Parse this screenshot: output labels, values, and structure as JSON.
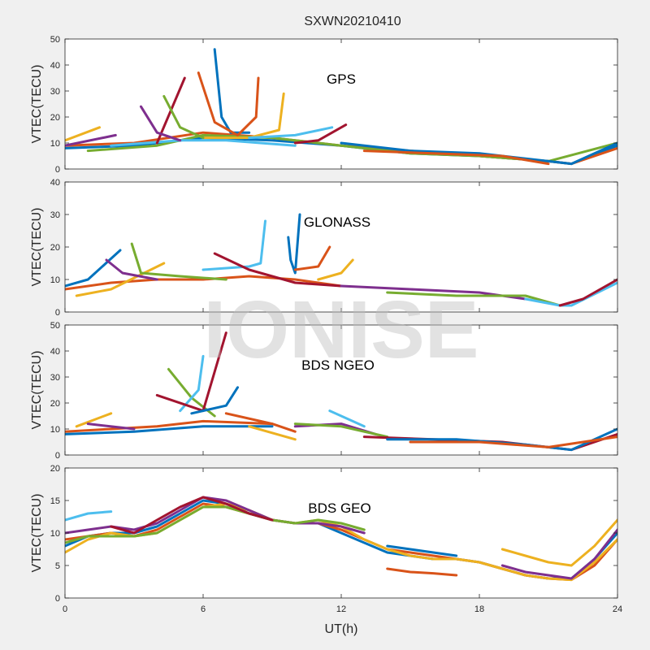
{
  "figure": {
    "title": "SXWN20210410",
    "watermark": "IONISE"
  },
  "colors": [
    "#0072BD",
    "#D95319",
    "#EDB120",
    "#7E2F8E",
    "#77AC30",
    "#4DBEEE",
    "#A2142F"
  ],
  "chart_data": [
    {
      "type": "line",
      "panel_label": "GPS",
      "ylabel": "VTEC(TECU)",
      "xlabel": "",
      "xlim": [
        0,
        24
      ],
      "ylim": [
        0,
        50
      ],
      "xticks": [
        0,
        6,
        12,
        18,
        24
      ],
      "yticks": [
        0,
        10,
        20,
        30,
        40,
        50
      ],
      "grid": false,
      "series": [
        {
          "x": [
            0,
            3,
            6,
            9,
            12,
            15,
            18,
            21,
            22,
            24
          ],
          "y": [
            8,
            9,
            12,
            11,
            9,
            6,
            5,
            3,
            2,
            9
          ]
        },
        {
          "x": [
            0,
            3,
            6,
            9,
            12,
            15,
            18,
            21,
            22,
            24
          ],
          "y": [
            9,
            10,
            14,
            12,
            9,
            7,
            5,
            3,
            2,
            8
          ]
        },
        {
          "x": [
            0,
            1.5
          ],
          "y": [
            11,
            16
          ]
        },
        {
          "x": [
            0,
            2.2
          ],
          "y": [
            9,
            13
          ]
        },
        {
          "x": [
            1,
            4,
            6,
            9,
            12,
            15,
            18,
            21,
            24
          ],
          "y": [
            7,
            9,
            13,
            12,
            9,
            6,
            5,
            3,
            10
          ]
        },
        {
          "x": [
            2,
            5,
            7,
            10
          ],
          "y": [
            9,
            11,
            11,
            9
          ]
        },
        {
          "x": [
            4,
            5.2
          ],
          "y": [
            10,
            35
          ]
        },
        {
          "x": [
            6.5,
            6.8,
            7.2,
            8
          ],
          "y": [
            46,
            20,
            14,
            14
          ]
        },
        {
          "x": [
            5.8,
            6.5,
            7.5,
            8.3,
            8.4
          ],
          "y": [
            37,
            18,
            13,
            20,
            35
          ]
        },
        {
          "x": [
            6,
            8,
            9.3,
            9.5
          ],
          "y": [
            12,
            12,
            15,
            29
          ]
        },
        {
          "x": [
            3.3,
            4,
            5
          ],
          "y": [
            24,
            14,
            11
          ]
        },
        {
          "x": [
            4.3,
            5,
            6
          ],
          "y": [
            28,
            16,
            12
          ]
        },
        {
          "x": [
            8,
            10,
            11.6
          ],
          "y": [
            12,
            13,
            16
          ]
        },
        {
          "x": [
            10,
            11,
            12.2
          ],
          "y": [
            10,
            11,
            17
          ]
        },
        {
          "x": [
            12,
            15,
            18,
            21,
            22,
            24
          ],
          "y": [
            10,
            7,
            6,
            3,
            2,
            10
          ]
        },
        {
          "x": [
            13,
            16,
            19,
            21
          ],
          "y": [
            7,
            6,
            5,
            2
          ]
        }
      ]
    },
    {
      "type": "line",
      "panel_label": "GLONASS",
      "ylabel": "VTEC(TECU)",
      "xlabel": "",
      "xlim": [
        0,
        24
      ],
      "ylim": [
        0,
        40
      ],
      "xticks": [
        0,
        6,
        12,
        18,
        24
      ],
      "yticks": [
        0,
        10,
        20,
        30,
        40
      ],
      "grid": false,
      "series": [
        {
          "x": [
            0,
            1,
            2.4
          ],
          "y": [
            8,
            10,
            19
          ]
        },
        {
          "x": [
            0,
            2,
            4,
            6,
            8,
            10,
            12
          ],
          "y": [
            7,
            9,
            10,
            10,
            11,
            10,
            8
          ]
        },
        {
          "x": [
            0.5,
            2,
            4.3
          ],
          "y": [
            5,
            7,
            15
          ]
        },
        {
          "x": [
            1.8,
            2.5,
            4
          ],
          "y": [
            16,
            12,
            10
          ]
        },
        {
          "x": [
            2.9,
            3.3,
            5,
            7
          ],
          "y": [
            21,
            12,
            11,
            10
          ]
        },
        {
          "x": [
            6,
            8,
            8.5,
            8.7
          ],
          "y": [
            13,
            14,
            15,
            28
          ]
        },
        {
          "x": [
            6.5,
            8,
            10,
            12
          ],
          "y": [
            18,
            13,
            9,
            8
          ]
        },
        {
          "x": [
            9.7,
            9.8,
            10,
            10.2
          ],
          "y": [
            23,
            16,
            12,
            30
          ]
        },
        {
          "x": [
            10,
            11,
            11.5
          ],
          "y": [
            13,
            14,
            20
          ]
        },
        {
          "x": [
            11,
            12,
            12.5
          ],
          "y": [
            10,
            12,
            16
          ]
        },
        {
          "x": [
            12,
            15,
            18,
            20
          ],
          "y": [
            8,
            7,
            6,
            4
          ]
        },
        {
          "x": [
            14,
            17,
            20,
            21.5
          ],
          "y": [
            6,
            5,
            5,
            2
          ]
        },
        {
          "x": [
            20,
            21.5,
            22,
            24
          ],
          "y": [
            4,
            2,
            2,
            9
          ]
        },
        {
          "x": [
            21.5,
            22.5,
            24
          ],
          "y": [
            2,
            4,
            10
          ]
        }
      ]
    },
    {
      "type": "line",
      "panel_label": "BDS NGEO",
      "ylabel": "VTEC(TECU)",
      "xlabel": "",
      "xlim": [
        0,
        24
      ],
      "ylim": [
        0,
        50
      ],
      "xticks": [
        0,
        6,
        12,
        18,
        24
      ],
      "yticks": [
        0,
        10,
        20,
        30,
        40,
        50
      ],
      "grid": false,
      "series": [
        {
          "x": [
            0,
            3,
            6,
            9
          ],
          "y": [
            8,
            9,
            11,
            11
          ]
        },
        {
          "x": [
            0,
            2,
            4,
            6,
            9
          ],
          "y": [
            9,
            10,
            11,
            13,
            12
          ]
        },
        {
          "x": [
            0.5,
            2
          ],
          "y": [
            11,
            16
          ]
        },
        {
          "x": [
            1,
            3
          ],
          "y": [
            12,
            10
          ]
        },
        {
          "x": [
            4.5,
            5.5,
            6.5
          ],
          "y": [
            33,
            22,
            15
          ]
        },
        {
          "x": [
            5,
            5.8,
            6
          ],
          "y": [
            17,
            25,
            38
          ]
        },
        {
          "x": [
            4,
            6,
            7
          ],
          "y": [
            23,
            17,
            47
          ]
        },
        {
          "x": [
            5.5,
            7,
            7.5
          ],
          "y": [
            16,
            19,
            26
          ]
        },
        {
          "x": [
            7,
            9,
            10
          ],
          "y": [
            16,
            12,
            9
          ]
        },
        {
          "x": [
            8,
            10
          ],
          "y": [
            11,
            6
          ]
        },
        {
          "x": [
            10,
            12,
            13.5
          ],
          "y": [
            11,
            12,
            8
          ]
        },
        {
          "x": [
            10,
            12,
            14
          ],
          "y": [
            12,
            11,
            7
          ]
        },
        {
          "x": [
            11.5,
            13
          ],
          "y": [
            17,
            11
          ]
        },
        {
          "x": [
            13,
            16,
            19,
            21,
            22,
            24
          ],
          "y": [
            7,
            6,
            5,
            3,
            2,
            8
          ]
        },
        {
          "x": [
            14,
            17,
            20,
            22,
            24
          ],
          "y": [
            6,
            6,
            4,
            2,
            10
          ]
        },
        {
          "x": [
            15,
            18,
            21,
            24
          ],
          "y": [
            5,
            5,
            3,
            7
          ]
        }
      ]
    },
    {
      "type": "line",
      "panel_label": "BDS GEO",
      "ylabel": "VTEC(TECU)",
      "xlabel": "UT(h)",
      "xlim": [
        0,
        24
      ],
      "ylim": [
        0,
        20
      ],
      "xticks": [
        0,
        6,
        12,
        18,
        24
      ],
      "yticks": [
        0,
        5,
        10,
        15,
        20
      ],
      "grid": false,
      "series": [
        {
          "x": [
            0,
            1,
            2,
            3,
            4,
            5,
            6,
            7,
            8,
            9,
            10,
            11,
            12,
            13,
            14,
            15,
            16,
            17,
            18,
            19,
            20,
            21,
            22,
            23,
            24
          ],
          "y": [
            8,
            9.5,
            10,
            10,
            11,
            13,
            15,
            14.5,
            13,
            12,
            11.5,
            11.5,
            10,
            8.5,
            7,
            6.5,
            6,
            6,
            5.5,
            4.5,
            3.5,
            3,
            3,
            6,
            10
          ]
        },
        {
          "x": [
            0,
            1,
            2,
            3,
            4,
            5,
            6,
            7,
            8,
            9,
            10,
            11,
            12,
            13,
            14,
            15,
            16,
            17,
            18,
            19,
            20,
            21,
            22,
            23,
            24
          ],
          "y": [
            9,
            9.5,
            10,
            9.5,
            10.5,
            12.5,
            14.5,
            14,
            13,
            12,
            11.5,
            11.5,
            10.5,
            9,
            7.5,
            7,
            6.5,
            6,
            5.5,
            4.5,
            3.5,
            3,
            2.8,
            5,
            9
          ]
        },
        {
          "x": [
            0,
            1,
            2,
            3,
            4,
            5,
            6,
            7,
            8,
            9,
            10,
            11,
            12,
            13,
            14,
            15,
            16,
            17,
            18,
            19,
            20,
            21,
            22,
            23,
            24
          ],
          "y": [
            7,
            9,
            10,
            9.5,
            10,
            12,
            14,
            14.5,
            13.5,
            12,
            11.5,
            12,
            11,
            9,
            7.5,
            6.5,
            6,
            6,
            5.5,
            4.5,
            3.5,
            3,
            2.8,
            5.5,
            9
          ]
        },
        {
          "x": [
            0,
            1,
            2,
            3,
            4,
            5,
            6,
            7,
            8,
            9,
            10,
            11,
            12,
            13
          ],
          "y": [
            10,
            10.5,
            11,
            10.5,
            11.5,
            13.5,
            15.5,
            15,
            13.5,
            12,
            11.5,
            11.5,
            11,
            10
          ]
        },
        {
          "x": [
            0,
            1,
            2,
            3,
            4,
            5,
            6,
            7,
            8,
            9,
            10,
            11,
            12,
            13
          ],
          "y": [
            8.5,
            9.5,
            9.5,
            9.5,
            10,
            12,
            14,
            14,
            13,
            12,
            11.5,
            12,
            11.5,
            10.5
          ]
        },
        {
          "x": [
            0,
            1,
            2
          ],
          "y": [
            12,
            13,
            13.3
          ]
        },
        {
          "x": [
            2,
            3,
            4,
            5,
            6,
            7,
            8,
            9
          ],
          "y": [
            11,
            10,
            12,
            14,
            15.5,
            14.5,
            13,
            12
          ]
        },
        {
          "x": [
            14,
            15,
            16,
            17
          ],
          "y": [
            8,
            7.5,
            7,
            6.5
          ]
        },
        {
          "x": [
            14,
            15,
            16,
            17
          ],
          "y": [
            4.5,
            4,
            3.8,
            3.5
          ]
        },
        {
          "x": [
            19,
            20,
            21,
            22,
            23,
            24
          ],
          "y": [
            7.5,
            6.5,
            5.5,
            5,
            8,
            12
          ]
        },
        {
          "x": [
            19,
            20,
            21,
            22,
            23,
            24
          ],
          "y": [
            5,
            4,
            3.5,
            3,
            6,
            10.5
          ]
        }
      ]
    }
  ]
}
